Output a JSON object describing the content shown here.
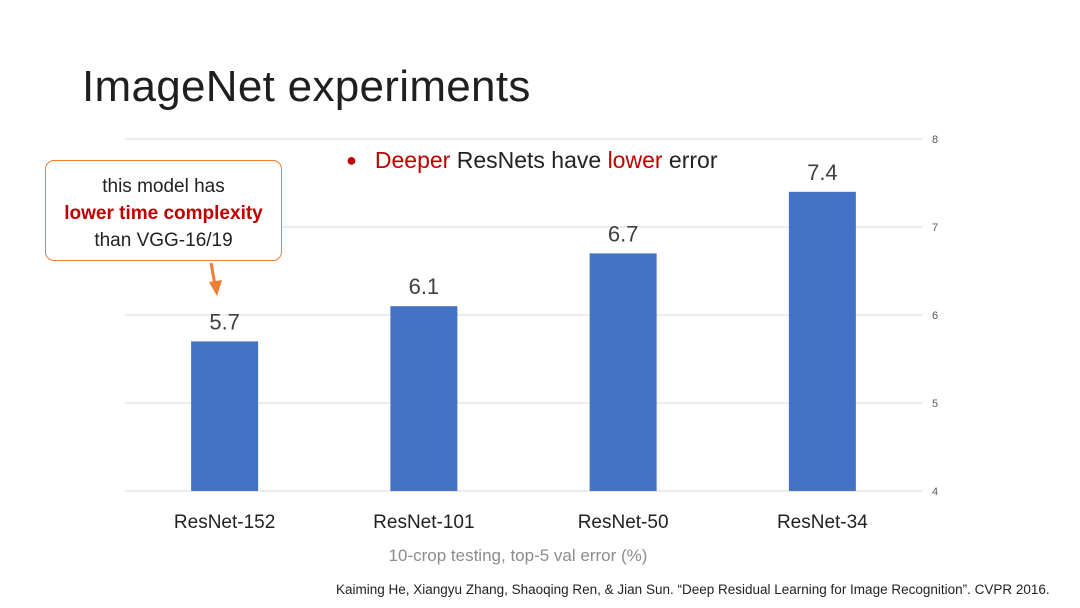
{
  "slide": {
    "title": "ImageNet experiments",
    "bullet": {
      "parts": [
        {
          "text": "Deeper",
          "accent": true
        },
        {
          "text": " ResNets have ",
          "accent": false
        },
        {
          "text": "lower",
          "accent": true
        },
        {
          "text": " error",
          "accent": false
        }
      ]
    },
    "callout": {
      "line1": "this model has",
      "line2": "lower time complexity",
      "line3": "than VGG-16/19"
    },
    "citation": "Kaiming He, Xiangyu Zhang, Shaoqing Ren, & Jian Sun. “Deep Residual Learning for Image Recognition”. CVPR 2016."
  },
  "colors": {
    "bar": "#4472c4",
    "accent": "#c00000",
    "callout_border": "#ed7d31",
    "grid": "#d9d9d9"
  },
  "chart_data": {
    "type": "bar",
    "categories": [
      "ResNet-152",
      "ResNet-101",
      "ResNet-50",
      "ResNet-34"
    ],
    "values": [
      5.7,
      6.1,
      6.7,
      7.4
    ],
    "data_labels": [
      "5.7",
      "6.1",
      "6.7",
      "7.4"
    ],
    "xlabel": "10-crop testing, top-5 val error (%)",
    "ylabel": "",
    "ylim": [
      4,
      8
    ],
    "yticks": [
      4,
      5,
      6,
      7,
      8
    ],
    "yaxis_side": "right",
    "grid": true
  }
}
